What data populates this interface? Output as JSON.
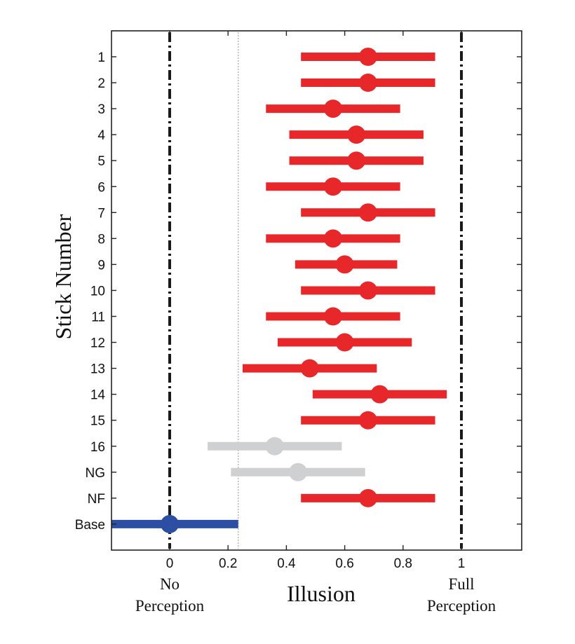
{
  "chart_data": {
    "type": "interval",
    "xlabel": "Illusion",
    "ylabel": "Stick Number",
    "xlim": [
      -0.2,
      1.2
    ],
    "xticks": [
      0,
      0.2,
      0.4,
      0.6,
      0.8,
      1
    ],
    "xtick_labels": [
      "0",
      "0.2",
      "0.4",
      "0.6",
      "0.8",
      "1"
    ],
    "annotations": {
      "left": [
        "No",
        "Perception"
      ],
      "right": [
        "Full",
        "Perception"
      ]
    },
    "reference_lines": [
      {
        "x": 0,
        "style": "dash-dot"
      },
      {
        "x": 1,
        "style": "dash-dot"
      },
      {
        "x": 0.235,
        "style": "dotted"
      }
    ],
    "colors": {
      "highlight": "#e8272a",
      "neutral": "#cfd0d1",
      "baseline": "#2c4fa3"
    },
    "categories": [
      "1",
      "2",
      "3",
      "4",
      "5",
      "6",
      "7",
      "8",
      "9",
      "10",
      "11",
      "12",
      "13",
      "14",
      "15",
      "16",
      "NG",
      "NF",
      "Base"
    ],
    "points": [
      {
        "label": "1",
        "mean": 0.68,
        "low": 0.45,
        "high": 0.91,
        "group": "highlight"
      },
      {
        "label": "2",
        "mean": 0.68,
        "low": 0.45,
        "high": 0.91,
        "group": "highlight"
      },
      {
        "label": "3",
        "mean": 0.56,
        "low": 0.33,
        "high": 0.79,
        "group": "highlight"
      },
      {
        "label": "4",
        "mean": 0.64,
        "low": 0.41,
        "high": 0.87,
        "group": "highlight"
      },
      {
        "label": "5",
        "mean": 0.64,
        "low": 0.41,
        "high": 0.87,
        "group": "highlight"
      },
      {
        "label": "6",
        "mean": 0.56,
        "low": 0.33,
        "high": 0.79,
        "group": "highlight"
      },
      {
        "label": "7",
        "mean": 0.68,
        "low": 0.45,
        "high": 0.91,
        "group": "highlight"
      },
      {
        "label": "8",
        "mean": 0.56,
        "low": 0.33,
        "high": 0.79,
        "group": "highlight"
      },
      {
        "label": "9",
        "mean": 0.6,
        "low": 0.43,
        "high": 0.78,
        "group": "highlight"
      },
      {
        "label": "10",
        "mean": 0.68,
        "low": 0.45,
        "high": 0.91,
        "group": "highlight"
      },
      {
        "label": "11",
        "mean": 0.56,
        "low": 0.33,
        "high": 0.79,
        "group": "highlight"
      },
      {
        "label": "12",
        "mean": 0.6,
        "low": 0.37,
        "high": 0.83,
        "group": "highlight"
      },
      {
        "label": "13",
        "mean": 0.48,
        "low": 0.25,
        "high": 0.71,
        "group": "highlight"
      },
      {
        "label": "14",
        "mean": 0.72,
        "low": 0.49,
        "high": 0.95,
        "group": "highlight"
      },
      {
        "label": "15",
        "mean": 0.68,
        "low": 0.45,
        "high": 0.91,
        "group": "highlight"
      },
      {
        "label": "16",
        "mean": 0.36,
        "low": 0.13,
        "high": 0.59,
        "group": "neutral"
      },
      {
        "label": "NG",
        "mean": 0.44,
        "low": 0.21,
        "high": 0.67,
        "group": "neutral"
      },
      {
        "label": "NF",
        "mean": 0.68,
        "low": 0.45,
        "high": 0.91,
        "group": "highlight"
      },
      {
        "label": "Base",
        "mean": 0.0,
        "low": -0.2,
        "high": 0.235,
        "group": "baseline"
      }
    ]
  }
}
